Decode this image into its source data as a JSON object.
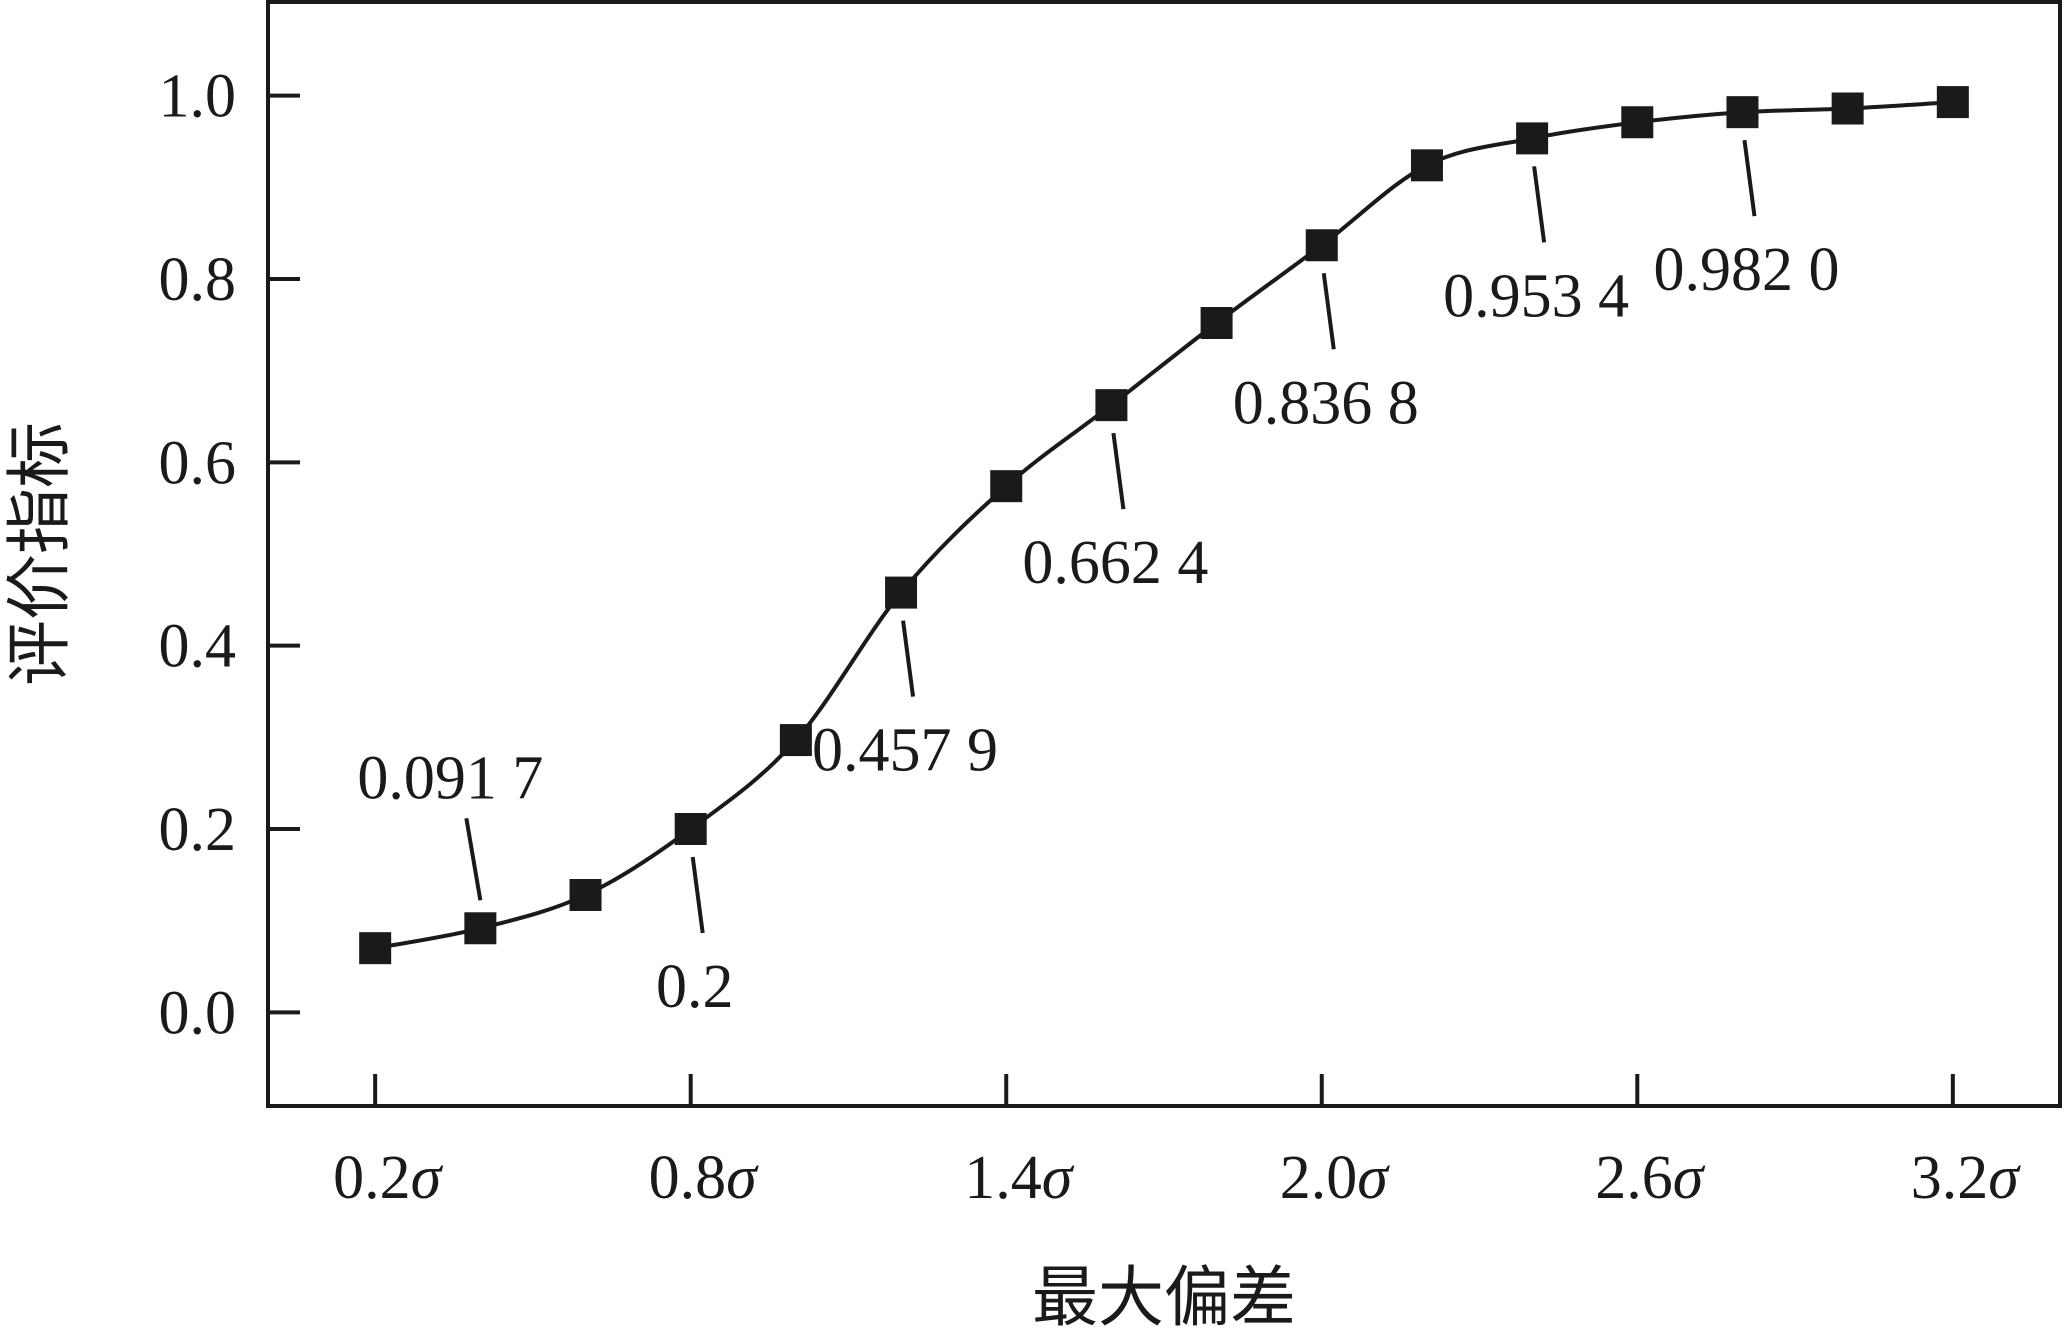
{
  "chart_data": {
    "type": "line",
    "xlabel": "最大偏差",
    "ylabel": "评价指标",
    "x": [
      0.2,
      0.4,
      0.6,
      0.8,
      1.0,
      1.2,
      1.4,
      1.6,
      1.8,
      2.0,
      2.2,
      2.4,
      2.6,
      2.8,
      3.0,
      3.2
    ],
    "series": [
      {
        "values": [
          0.07,
          0.0917,
          0.128,
          0.2,
          0.297,
          0.4579,
          0.574,
          0.6624,
          0.752,
          0.8368,
          0.924,
          0.9534,
          0.971,
          0.982,
          0.986,
          0.993
        ]
      }
    ],
    "xlim": [
      0.0,
      3.4
    ],
    "ylim": [
      -0.1,
      1.1
    ],
    "x_ticks": [
      0.2,
      0.8,
      1.4,
      2.0,
      2.6,
      3.2
    ],
    "x_tick_labels": [
      "0.2σ",
      "0.8σ",
      "1.4σ",
      "2.0σ",
      "2.6σ",
      "3.2σ"
    ],
    "y_ticks": [
      0.0,
      0.2,
      0.4,
      0.6,
      0.8,
      1.0
    ],
    "y_tick_labels": [
      "0.0",
      "0.2",
      "0.4",
      "0.6",
      "0.8",
      "1.0"
    ],
    "annotations": [
      {
        "index": 1,
        "label": "0.091 7",
        "position": "above"
      },
      {
        "index": 3,
        "label": "0.2",
        "position": "below"
      },
      {
        "index": 5,
        "label": "0.457 9",
        "position": "below"
      },
      {
        "index": 7,
        "label": "0.662 4",
        "position": "below"
      },
      {
        "index": 9,
        "label": "0.836 8",
        "position": "below"
      },
      {
        "index": 11,
        "label": "0.953 4",
        "position": "below"
      },
      {
        "index": 13,
        "label": "0.982 0",
        "position": "below"
      }
    ],
    "grid": false,
    "marker": "square",
    "colors": {
      "line": "#1a1a1a",
      "marker": "#1a1a1a",
      "axis": "#1a1a1a"
    }
  }
}
